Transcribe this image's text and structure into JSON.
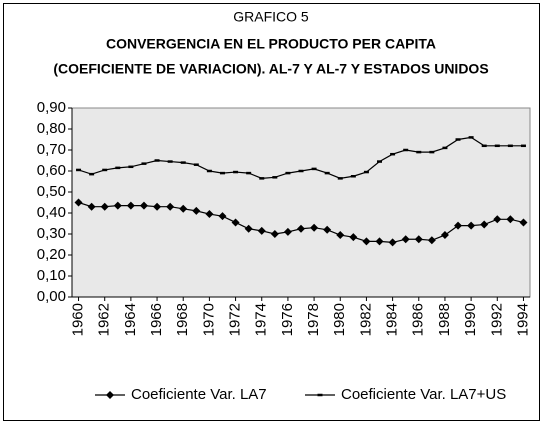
{
  "chart_data": {
    "type": "line",
    "title": "GRAFICO 5",
    "subtitle": [
      "CONVERGENCIA EN EL PRODUCTO PER CAPITA",
      "(COEFICIENTE DE VARIACION). AL-7 Y AL-7 Y ESTADOS UNIDOS"
    ],
    "x": [
      1960,
      1961,
      1962,
      1963,
      1964,
      1965,
      1966,
      1967,
      1968,
      1969,
      1970,
      1971,
      1972,
      1973,
      1974,
      1975,
      1976,
      1977,
      1978,
      1979,
      1980,
      1981,
      1982,
      1983,
      1984,
      1985,
      1986,
      1987,
      1988,
      1989,
      1990,
      1991,
      1992,
      1993,
      1994
    ],
    "series": [
      {
        "name": "Coeficiente Var. LA7",
        "color": "#000000",
        "marker": "diamond",
        "values": [
          0.45,
          0.43,
          0.43,
          0.435,
          0.435,
          0.435,
          0.43,
          0.43,
          0.42,
          0.41,
          0.395,
          0.385,
          0.355,
          0.325,
          0.315,
          0.3,
          0.31,
          0.325,
          0.33,
          0.32,
          0.295,
          0.285,
          0.265,
          0.265,
          0.26,
          0.275,
          0.275,
          0.27,
          0.295,
          0.34,
          0.34,
          0.345,
          0.37,
          0.37,
          0.355
        ]
      },
      {
        "name": "Coeficiente Var. LA7+US",
        "color": "#000000",
        "marker": "dash",
        "values": [
          0.605,
          0.585,
          0.605,
          0.615,
          0.62,
          0.635,
          0.65,
          0.645,
          0.64,
          0.63,
          0.6,
          0.59,
          0.595,
          0.59,
          0.565,
          0.57,
          0.59,
          0.6,
          0.61,
          0.59,
          0.565,
          0.575,
          0.595,
          0.645,
          0.68,
          0.7,
          0.69,
          0.69,
          0.71,
          0.75,
          0.76,
          0.72,
          0.72,
          0.72,
          0.72
        ]
      }
    ],
    "xlim": [
      1959.5,
      1994.5
    ],
    "xticks": [
      1960,
      1962,
      1964,
      1966,
      1968,
      1970,
      1972,
      1974,
      1976,
      1978,
      1980,
      1982,
      1984,
      1986,
      1988,
      1990,
      1992,
      1994
    ],
    "ylim": [
      0,
      0.9
    ],
    "yticks": [
      {
        "value": 0,
        "label": "0,00"
      },
      {
        "value": 0.1,
        "label": "0,10"
      },
      {
        "value": 0.2,
        "label": "0,20"
      },
      {
        "value": 0.3,
        "label": "0,30"
      },
      {
        "value": 0.4,
        "label": "0,40"
      },
      {
        "value": 0.5,
        "label": "0,50"
      },
      {
        "value": 0.6,
        "label": "0,60"
      },
      {
        "value": 0.7,
        "label": "0,70"
      },
      {
        "value": 0.8,
        "label": "0,80"
      },
      {
        "value": 0.9,
        "label": "0,90"
      }
    ],
    "grid": false,
    "legend": "bottom",
    "plot_background": "#e8e8e8"
  }
}
